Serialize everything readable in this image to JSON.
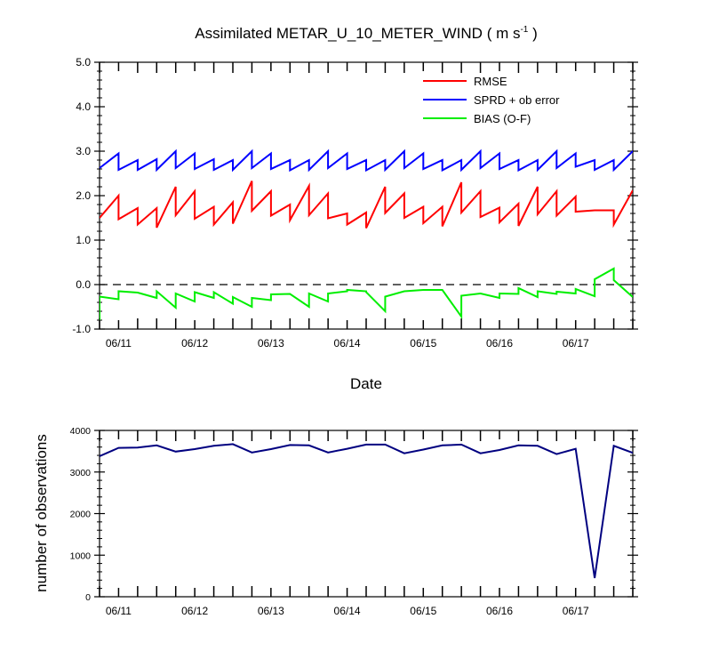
{
  "chart_data": [
    {
      "type": "line",
      "title": "Assimilated METAR_U_10_METER_WIND",
      "title_units_prefix": "( m s",
      "title_units_exponent": "-1",
      "title_units_suffix": " )",
      "xlabel": "Date",
      "ylabel": "",
      "ylim": [
        -1.0,
        5.0
      ],
      "yticks": [
        -1.0,
        0.0,
        1.0,
        2.0,
        3.0,
        4.0,
        5.0
      ],
      "ytick_labels": [
        "-1.0",
        "0.0",
        "1.0",
        "2.0",
        "3.0",
        "4.0",
        "5.0"
      ],
      "xlim": [
        0,
        28
      ],
      "xtick_labels": [
        "06/11",
        "06/12",
        "06/13",
        "06/14",
        "06/15",
        "06/16",
        "06/17"
      ],
      "xtick_positions": [
        1,
        5,
        9,
        13,
        17,
        21,
        25
      ],
      "zero_line": "dashed",
      "legend_position": "top-right",
      "series": [
        {
          "name": "RMSE",
          "color": "#ff0000",
          "x": [
            0.0,
            0.0,
            1.0,
            1.0,
            2.0,
            2.0,
            3.0,
            3.0,
            4.0,
            4.0,
            5.0,
            5.0,
            6.0,
            6.0,
            7.0,
            7.0,
            8.0,
            8.0,
            9.0,
            9.0,
            10.0,
            10.0,
            11.0,
            11.0,
            12.0,
            12.0,
            13.0,
            13.0,
            14.0,
            14.0,
            15.0,
            15.0,
            16.0,
            16.0,
            17.0,
            17.0,
            18.0,
            18.0,
            19.0,
            19.0,
            20.0,
            20.0,
            21.0,
            21.0,
            22.0,
            22.0,
            23.0,
            23.0,
            24.0,
            24.0,
            25.0,
            25.0,
            26.0,
            26.0,
            27.0,
            27.0,
            28.0
          ],
          "values": [
            1.5,
            1.5,
            2.0,
            1.47,
            1.72,
            1.35,
            1.72,
            1.28,
            2.2,
            1.56,
            2.1,
            1.48,
            1.75,
            1.35,
            1.85,
            1.37,
            2.33,
            1.66,
            2.1,
            1.55,
            1.8,
            1.45,
            2.22,
            1.56,
            2.05,
            1.49,
            1.6,
            1.35,
            1.62,
            1.27,
            2.2,
            1.61,
            2.05,
            1.5,
            1.75,
            1.38,
            1.75,
            1.31,
            2.3,
            1.62,
            2.1,
            1.52,
            1.73,
            1.4,
            1.82,
            1.32,
            2.2,
            1.58,
            2.1,
            1.55,
            1.98,
            1.64,
            1.67,
            1.67,
            1.67,
            1.35,
            2.12
          ]
        },
        {
          "name": "SPRD + ob error",
          "color": "#0000ff",
          "x": [
            0.0,
            0.0,
            1.0,
            1.0,
            2.0,
            2.0,
            3.0,
            3.0,
            4.0,
            4.0,
            5.0,
            5.0,
            6.0,
            6.0,
            7.0,
            7.0,
            8.0,
            8.0,
            9.0,
            9.0,
            10.0,
            10.0,
            11.0,
            11.0,
            12.0,
            12.0,
            13.0,
            13.0,
            14.0,
            14.0,
            15.0,
            15.0,
            16.0,
            16.0,
            17.0,
            17.0,
            18.0,
            18.0,
            19.0,
            19.0,
            20.0,
            20.0,
            21.0,
            21.0,
            22.0,
            22.0,
            23.0,
            23.0,
            24.0,
            24.0,
            25.0,
            25.0,
            26.0,
            26.0,
            27.0,
            27.0,
            28.0
          ],
          "values": [
            2.62,
            2.62,
            2.95,
            2.58,
            2.8,
            2.58,
            2.82,
            2.58,
            3.0,
            2.62,
            2.95,
            2.6,
            2.82,
            2.58,
            2.8,
            2.58,
            3.0,
            2.62,
            2.95,
            2.6,
            2.8,
            2.57,
            2.8,
            2.58,
            3.0,
            2.62,
            2.95,
            2.6,
            2.8,
            2.57,
            2.8,
            2.58,
            3.0,
            2.62,
            2.95,
            2.6,
            2.8,
            2.57,
            2.8,
            2.58,
            3.0,
            2.62,
            2.95,
            2.6,
            2.8,
            2.57,
            2.8,
            2.58,
            3.0,
            2.62,
            2.95,
            2.65,
            2.8,
            2.58,
            2.8,
            2.58,
            3.0
          ]
        },
        {
          "name": "BIAS (O-F)",
          "color": "#00ee00",
          "x": [
            0.0,
            0.0,
            1.0,
            1.0,
            2.0,
            2.0,
            3.0,
            3.0,
            4.0,
            4.0,
            5.0,
            5.0,
            6.0,
            6.0,
            7.0,
            7.0,
            8.0,
            8.0,
            9.0,
            9.0,
            10.0,
            10.0,
            11.0,
            11.0,
            12.0,
            12.0,
            13.0,
            13.0,
            14.0,
            14.0,
            15.0,
            15.0,
            16.0,
            16.0,
            17.0,
            17.0,
            18.0,
            18.0,
            19.0,
            19.0,
            20.0,
            20.0,
            21.0,
            21.0,
            22.0,
            22.0,
            23.0,
            23.0,
            24.0,
            24.0,
            25.0,
            25.0,
            26.0,
            26.0,
            27.0,
            27.0,
            28.0
          ],
          "values": [
            -0.8,
            -0.27,
            -0.33,
            -0.15,
            -0.18,
            -0.18,
            -0.3,
            -0.15,
            -0.52,
            -0.2,
            -0.38,
            -0.17,
            -0.3,
            -0.17,
            -0.43,
            -0.28,
            -0.5,
            -0.3,
            -0.35,
            -0.22,
            -0.21,
            -0.21,
            -0.5,
            -0.2,
            -0.38,
            -0.2,
            -0.15,
            -0.12,
            -0.15,
            -0.17,
            -0.6,
            -0.27,
            -0.15,
            -0.15,
            -0.12,
            -0.12,
            -0.12,
            -0.12,
            -0.72,
            -0.25,
            -0.2,
            -0.2,
            -0.3,
            -0.2,
            -0.21,
            -0.08,
            -0.28,
            -0.15,
            -0.21,
            -0.16,
            -0.2,
            -0.1,
            -0.26,
            0.12,
            0.36,
            0.1,
            -0.28
          ]
        }
      ]
    },
    {
      "type": "line",
      "title": "",
      "xlabel": "",
      "ylabel": "number of observations",
      "ylim": [
        0,
        4000
      ],
      "yticks": [
        0,
        1000,
        2000,
        3000,
        4000
      ],
      "ytick_labels": [
        "0",
        "1000",
        "2000",
        "3000",
        "4000"
      ],
      "xlim": [
        0,
        28
      ],
      "xtick_labels": [
        "06/11",
        "06/12",
        "06/13",
        "06/14",
        "06/15",
        "06/16",
        "06/17"
      ],
      "xtick_positions": [
        1,
        5,
        9,
        13,
        17,
        21,
        25
      ],
      "series": [
        {
          "name": "",
          "color": "#000080",
          "x": [
            0,
            1,
            2,
            3,
            4,
            5,
            6,
            7,
            8,
            9,
            10,
            11,
            12,
            13,
            14,
            15,
            16,
            17,
            18,
            19,
            20,
            21,
            22,
            23,
            24,
            25,
            26,
            27,
            28
          ],
          "values": [
            3380,
            3580,
            3590,
            3640,
            3490,
            3550,
            3630,
            3670,
            3470,
            3550,
            3650,
            3640,
            3470,
            3560,
            3660,
            3660,
            3450,
            3540,
            3640,
            3660,
            3450,
            3530,
            3640,
            3630,
            3430,
            3560,
            450,
            3630,
            3460
          ]
        }
      ]
    }
  ]
}
